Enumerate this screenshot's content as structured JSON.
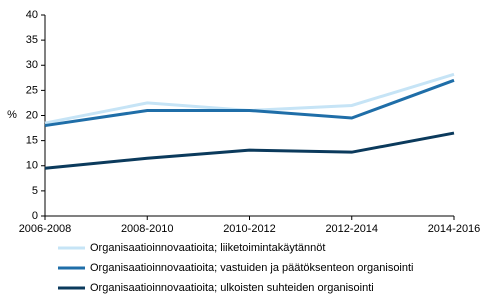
{
  "chart_data": {
    "type": "line",
    "y_label": "%",
    "categories": [
      "2006-2008",
      "2008-2010",
      "2010-2012",
      "2012-2014",
      "2014-2016"
    ],
    "series": [
      {
        "name": "Organisaatioinnovaatioita; liiketoimintakäytännöt",
        "color": "#c6e4f6",
        "values": [
          18.5,
          22.5,
          21,
          22,
          28.2
        ]
      },
      {
        "name": "Organisaatioinnovaatioita; vastuiden ja päätöksenteon organisointi",
        "color": "#1f6ea8",
        "values": [
          18,
          21,
          21,
          19.5,
          27
        ]
      },
      {
        "name": "Organisaatioinnovaatioita; ulkoisten suhteiden organisointi",
        "color": "#0b3a5c",
        "values": [
          9.5,
          11.5,
          13.1,
          12.7,
          16.5
        ]
      }
    ],
    "ylim": [
      0,
      40
    ],
    "yticks": [
      0,
      5,
      10,
      15,
      20,
      25,
      30,
      35,
      40
    ],
    "grid": false
  }
}
